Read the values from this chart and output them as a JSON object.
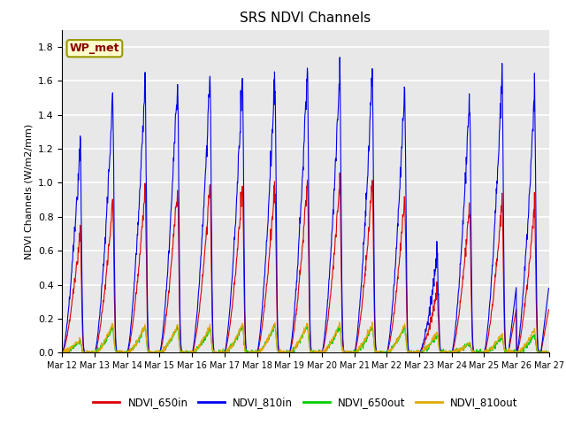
{
  "title": "SRS NDVI Channels",
  "ylabel": "NDVI Channels (W/m2/mm)",
  "annotation": "WP_met",
  "ylim": [
    0.0,
    1.9
  ],
  "yticks": [
    0.0,
    0.2,
    0.4,
    0.6,
    0.8,
    1.0,
    1.2,
    1.4,
    1.6,
    1.8
  ],
  "colors": {
    "NDVI_650in": "#dd0000",
    "NDVI_810in": "#0000ee",
    "NDVI_650out": "#00cc00",
    "NDVI_810out": "#ddaa00"
  },
  "axes_facecolor": "#e8e8e8",
  "grid_color": "#ffffff",
  "start_day": 12,
  "end_day": 27,
  "red_peaks": [
    0.72,
    0.89,
    0.97,
    0.97,
    0.97,
    0.97,
    0.99,
    1.0,
    1.0,
    1.0,
    0.92,
    0.36,
    0.87,
    0.89,
    0.88
  ],
  "blue_peaks": [
    1.23,
    1.51,
    1.61,
    1.6,
    1.6,
    1.6,
    1.63,
    1.65,
    1.65,
    1.65,
    1.57,
    0.57,
    1.51,
    1.63,
    1.55
  ],
  "green_peaks": [
    0.07,
    0.15,
    0.15,
    0.15,
    0.14,
    0.16,
    0.16,
    0.16,
    0.15,
    0.15,
    0.15,
    0.1,
    0.05,
    0.09,
    0.1
  ],
  "orange_peaks": [
    0.08,
    0.17,
    0.16,
    0.16,
    0.16,
    0.17,
    0.17,
    0.17,
    0.17,
    0.17,
    0.16,
    0.12,
    0.06,
    0.11,
    0.14
  ],
  "legend_labels": [
    "NDVI_650in",
    "NDVI_810in",
    "NDVI_650out",
    "NDVI_810out"
  ]
}
